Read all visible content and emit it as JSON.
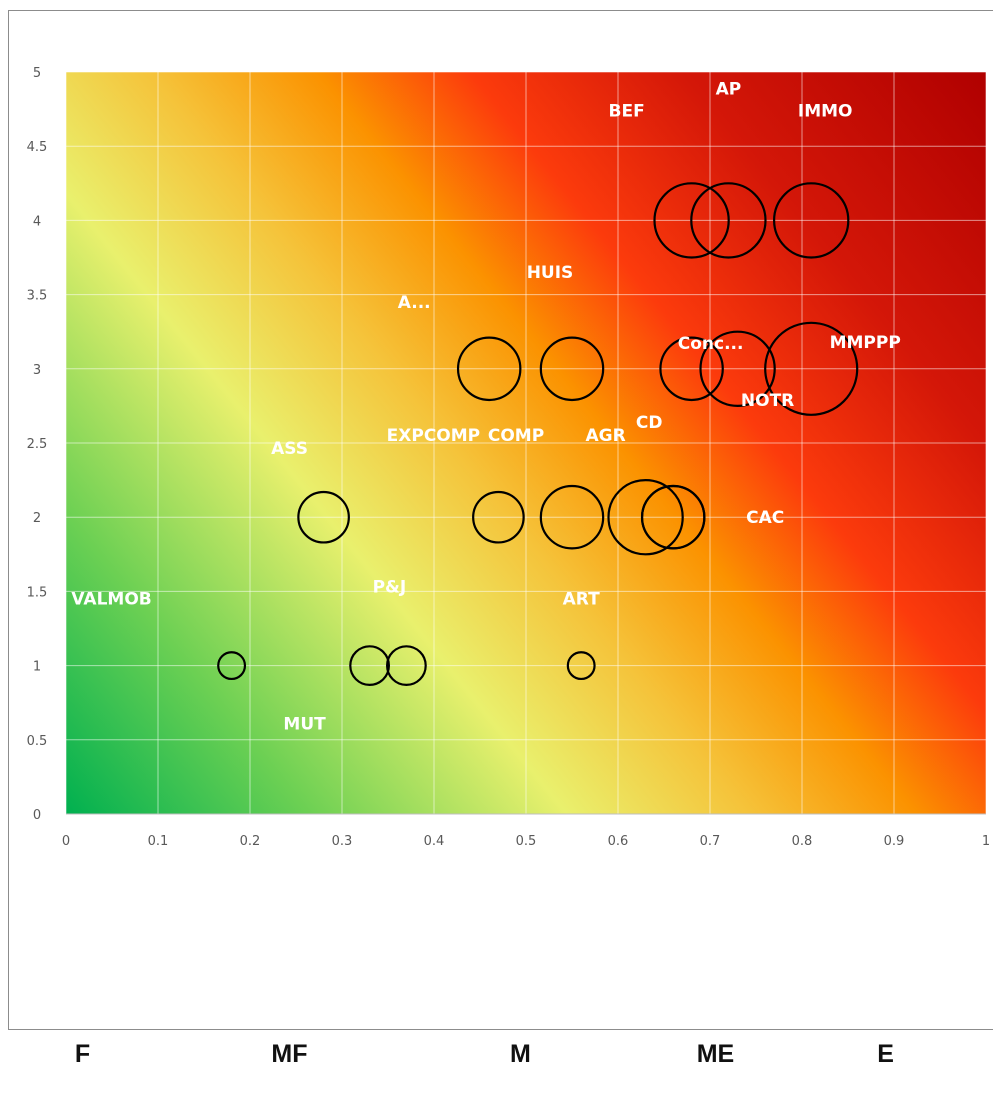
{
  "chart_data": {
    "type": "bubble",
    "xlim": [
      0,
      1
    ],
    "ylim": [
      0,
      5
    ],
    "x_ticks": [
      "0",
      "0.1",
      "0.2",
      "0.3",
      "0.4",
      "0.5",
      "0.6",
      "0.7",
      "0.8",
      "0.9",
      "1"
    ],
    "y_ticks": [
      "0",
      "0.5",
      "1",
      "1.5",
      "2",
      "2.5",
      "3",
      "3.5",
      "4",
      "4.5",
      "5"
    ],
    "grid": true,
    "background": "heatmap gradient green (bottom-left) to yellow, orange, red (top-right)",
    "bubble_outline_color": "#000000",
    "label_color": "#ffffff",
    "points": [
      {
        "label": "BEF",
        "x": 0.68,
        "y": 4.0,
        "r": 0.25
      },
      {
        "label": "AP",
        "x": 0.72,
        "y": 4.0,
        "r": 0.25
      },
      {
        "label": "IMMO",
        "x": 0.81,
        "y": 4.0,
        "r": 0.25
      },
      {
        "label": "A...",
        "x": 0.46,
        "y": 3.0,
        "r": 0.21
      },
      {
        "label": "HUIS",
        "x": 0.55,
        "y": 3.0,
        "r": 0.21
      },
      {
        "label": "Conc...",
        "x": 0.68,
        "y": 3.0,
        "r": 0.21
      },
      {
        "label": "NOTR",
        "x": 0.73,
        "y": 3.0,
        "r": 0.25
      },
      {
        "label": "MMPPP",
        "x": 0.81,
        "y": 3.0,
        "r": 0.31
      },
      {
        "label": "ASS",
        "x": 0.28,
        "y": 2.0,
        "r": 0.17
      },
      {
        "label": "EXPCOMP",
        "x": 0.47,
        "y": 2.0,
        "r": 0.17
      },
      {
        "label": "COMP",
        "x": 0.55,
        "y": 2.0,
        "r": 0.21
      },
      {
        "label": "AGR",
        "x": 0.63,
        "y": 2.0,
        "r": 0.25
      },
      {
        "label": "CD",
        "x": 0.66,
        "y": 2.0,
        "r": 0.21
      },
      {
        "label": "CAC",
        "x": 0.66,
        "y": 2.0,
        "r": 0.21
      },
      {
        "label": "VALMOB",
        "x": 0.18,
        "y": 1.0,
        "r": 0.09
      },
      {
        "label": "MUT",
        "x": 0.33,
        "y": 1.0,
        "r": 0.13
      },
      {
        "label": "P&J",
        "x": 0.37,
        "y": 1.0,
        "r": 0.13
      },
      {
        "label": "ART",
        "x": 0.56,
        "y": 1.0,
        "r": 0.09
      }
    ]
  },
  "bands": [
    {
      "label": "F",
      "x": 0.019
    },
    {
      "label": "MF",
      "x": 0.244
    },
    {
      "label": "M",
      "x": 0.495
    },
    {
      "label": "ME",
      "x": 0.707
    },
    {
      "label": "E",
      "x": 0.892
    }
  ]
}
